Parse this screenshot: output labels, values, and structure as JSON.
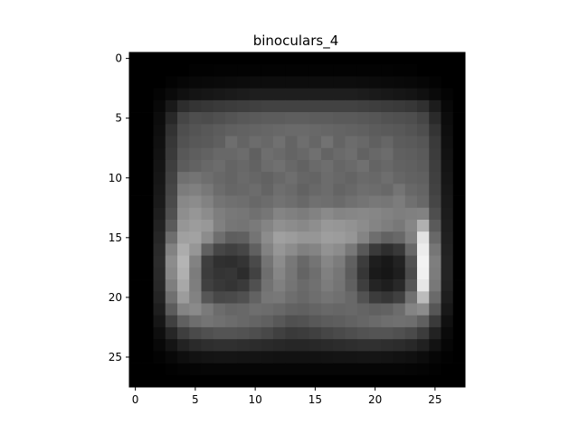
{
  "chart_data": {
    "type": "heatmap",
    "title": "binoculars_4",
    "colormap": "gray",
    "value_range": [
      0,
      255
    ],
    "xlim": [
      -0.5,
      27.5
    ],
    "ylim": [
      27.5,
      -0.5
    ],
    "xticks": [
      0,
      5,
      10,
      15,
      20,
      25
    ],
    "yticks": [
      0,
      5,
      10,
      15,
      20,
      25
    ],
    "xtick_labels": [
      "0",
      "5",
      "10",
      "15",
      "20",
      "25"
    ],
    "ytick_labels": [
      "0",
      "5",
      "10",
      "15",
      "20",
      "25"
    ],
    "rows": 28,
    "cols": 28,
    "values": [
      [
        0,
        0,
        0,
        0,
        0,
        0,
        0,
        0,
        0,
        0,
        0,
        0,
        0,
        0,
        0,
        0,
        0,
        0,
        0,
        0,
        0,
        0,
        0,
        0,
        0,
        0,
        0,
        0
      ],
      [
        0,
        0,
        0,
        0,
        0,
        2,
        2,
        3,
        3,
        3,
        3,
        3,
        3,
        3,
        3,
        3,
        3,
        3,
        3,
        3,
        3,
        3,
        2,
        2,
        0,
        0,
        0,
        0
      ],
      [
        0,
        0,
        0,
        3,
        6,
        8,
        9,
        10,
        11,
        12,
        13,
        13,
        13,
        13,
        13,
        13,
        13,
        13,
        13,
        12,
        11,
        10,
        9,
        8,
        6,
        3,
        0,
        0
      ],
      [
        0,
        0,
        4,
        10,
        16,
        20,
        22,
        24,
        26,
        28,
        30,
        30,
        30,
        30,
        30,
        30,
        30,
        30,
        30,
        28,
        26,
        24,
        22,
        20,
        16,
        10,
        4,
        0
      ],
      [
        0,
        0,
        8,
        25,
        45,
        52,
        55,
        58,
        60,
        62,
        64,
        66,
        66,
        66,
        66,
        66,
        66,
        66,
        66,
        64,
        62,
        60,
        58,
        55,
        48,
        28,
        8,
        0
      ],
      [
        0,
        0,
        12,
        40,
        70,
        78,
        76,
        80,
        84,
        88,
        90,
        92,
        92,
        94,
        94,
        92,
        92,
        90,
        90,
        88,
        86,
        82,
        80,
        78,
        70,
        42,
        12,
        0
      ],
      [
        0,
        0,
        14,
        50,
        78,
        84,
        88,
        92,
        96,
        98,
        100,
        102,
        104,
        106,
        106,
        104,
        102,
        100,
        98,
        96,
        92,
        90,
        88,
        84,
        78,
        52,
        14,
        0
      ],
      [
        0,
        0,
        16,
        55,
        82,
        88,
        90,
        95,
        110,
        100,
        108,
        104,
        112,
        100,
        110,
        102,
        114,
        100,
        108,
        104,
        96,
        102,
        92,
        90,
        86,
        58,
        16,
        0
      ],
      [
        0,
        0,
        18,
        58,
        88,
        94,
        98,
        104,
        104,
        108,
        96,
        110,
        106,
        100,
        104,
        112,
        100,
        106,
        110,
        98,
        104,
        108,
        96,
        94,
        90,
        60,
        18,
        0
      ],
      [
        0,
        0,
        20,
        62,
        92,
        98,
        104,
        108,
        100,
        104,
        98,
        108,
        112,
        104,
        98,
        106,
        110,
        102,
        106,
        112,
        100,
        104,
        98,
        96,
        92,
        62,
        20,
        0
      ],
      [
        0,
        0,
        22,
        66,
        112,
        116,
        110,
        104,
        100,
        106,
        102,
        98,
        104,
        110,
        102,
        100,
        108,
        104,
        100,
        106,
        104,
        110,
        102,
        98,
        96,
        64,
        22,
        0
      ],
      [
        0,
        0,
        24,
        70,
        124,
        128,
        120,
        108,
        102,
        104,
        108,
        100,
        110,
        106,
        98,
        104,
        108,
        100,
        104,
        110,
        108,
        104,
        116,
        104,
        100,
        66,
        24,
        0
      ],
      [
        0,
        0,
        26,
        74,
        136,
        140,
        130,
        116,
        112,
        110,
        104,
        108,
        114,
        110,
        104,
        112,
        110,
        106,
        112,
        116,
        120,
        118,
        124,
        112,
        104,
        70,
        26,
        0
      ],
      [
        0,
        0,
        30,
        80,
        142,
        150,
        140,
        126,
        120,
        118,
        112,
        118,
        132,
        128,
        124,
        130,
        138,
        132,
        134,
        136,
        134,
        130,
        126,
        128,
        130,
        78,
        28,
        0
      ],
      [
        0,
        0,
        34,
        90,
        150,
        156,
        152,
        128,
        118,
        116,
        122,
        132,
        144,
        140,
        136,
        142,
        152,
        150,
        146,
        140,
        132,
        126,
        120,
        134,
        176,
        90,
        30,
        0
      ],
      [
        0,
        0,
        38,
        110,
        160,
        162,
        140,
        110,
        94,
        96,
        116,
        140,
        160,
        156,
        150,
        150,
        158,
        156,
        150,
        132,
        110,
        98,
        104,
        128,
        226,
        104,
        32,
        0
      ],
      [
        0,
        0,
        42,
        130,
        172,
        150,
        96,
        70,
        64,
        70,
        96,
        130,
        150,
        140,
        128,
        132,
        146,
        140,
        120,
        88,
        58,
        46,
        56,
        104,
        236,
        118,
        34,
        0
      ],
      [
        0,
        0,
        44,
        140,
        180,
        130,
        62,
        48,
        46,
        52,
        74,
        116,
        140,
        120,
        104,
        116,
        134,
        124,
        96,
        60,
        30,
        24,
        34,
        82,
        242,
        126,
        36,
        0
      ],
      [
        0,
        0,
        42,
        136,
        176,
        124,
        60,
        52,
        54,
        44,
        66,
        110,
        134,
        118,
        100,
        110,
        128,
        118,
        92,
        54,
        26,
        22,
        30,
        76,
        240,
        124,
        36,
        0
      ],
      [
        0,
        0,
        40,
        126,
        168,
        126,
        64,
        56,
        52,
        58,
        80,
        114,
        128,
        116,
        106,
        112,
        124,
        116,
        96,
        62,
        36,
        30,
        40,
        86,
        230,
        120,
        34,
        0
      ],
      [
        0,
        0,
        36,
        112,
        156,
        130,
        86,
        72,
        74,
        80,
        98,
        118,
        120,
        110,
        104,
        110,
        116,
        112,
        104,
        82,
        60,
        54,
        64,
        112,
        188,
        106,
        30,
        0
      ],
      [
        0,
        0,
        30,
        92,
        132,
        138,
        122,
        108,
        102,
        104,
        110,
        108,
        104,
        98,
        96,
        100,
        104,
        102,
        104,
        100,
        96,
        98,
        108,
        132,
        140,
        86,
        24,
        0
      ],
      [
        0,
        0,
        22,
        64,
        96,
        110,
        116,
        112,
        108,
        104,
        100,
        96,
        88,
        80,
        82,
        88,
        92,
        94,
        98,
        102,
        106,
        110,
        112,
        110,
        96,
        58,
        16,
        0
      ],
      [
        0,
        0,
        14,
        38,
        62,
        74,
        80,
        84,
        84,
        82,
        78,
        72,
        64,
        58,
        60,
        64,
        70,
        74,
        78,
        82,
        84,
        84,
        80,
        74,
        60,
        34,
        10,
        0
      ],
      [
        0,
        0,
        8,
        20,
        34,
        42,
        46,
        48,
        48,
        46,
        44,
        42,
        40,
        38,
        38,
        40,
        42,
        44,
        46,
        48,
        48,
        46,
        44,
        40,
        32,
        18,
        6,
        0
      ],
      [
        0,
        0,
        3,
        8,
        14,
        18,
        20,
        21,
        21,
        20,
        20,
        19,
        18,
        18,
        18,
        18,
        19,
        20,
        20,
        21,
        21,
        20,
        18,
        16,
        12,
        6,
        2,
        0
      ],
      [
        0,
        0,
        0,
        2,
        4,
        5,
        6,
        6,
        6,
        6,
        6,
        6,
        6,
        6,
        6,
        6,
        6,
        6,
        6,
        6,
        6,
        6,
        6,
        5,
        4,
        2,
        0,
        0
      ],
      [
        0,
        0,
        0,
        0,
        0,
        0,
        0,
        0,
        0,
        0,
        0,
        0,
        0,
        0,
        0,
        0,
        0,
        0,
        0,
        0,
        0,
        0,
        0,
        0,
        0,
        0,
        0,
        0
      ]
    ]
  }
}
